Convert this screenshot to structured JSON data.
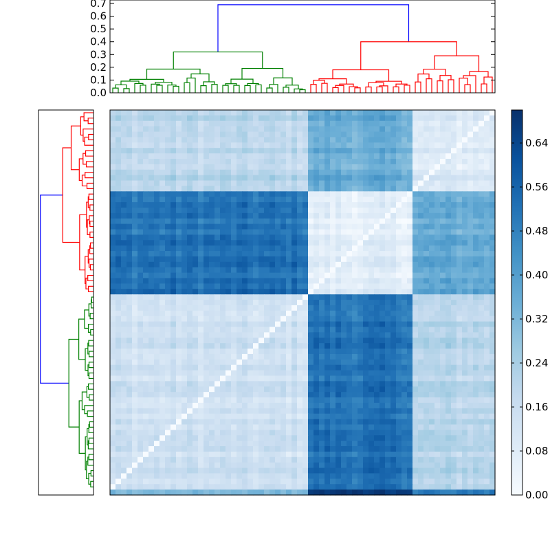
{
  "chart_data": {
    "type": "heatmap",
    "title": "",
    "xlabel": "",
    "ylabel": "",
    "n_leaves": 70,
    "cluster_order": [
      "green",
      "red"
    ],
    "cluster_sizes": {
      "green": 36,
      "red": 34
    },
    "red_subclusters": [
      {
        "name": "r1",
        "size": 19
      },
      {
        "name": "r2",
        "size": 15
      }
    ],
    "block_means": {
      "green-green": 0.14,
      "red1-red1": 0.07,
      "red2-red2": 0.1,
      "green-red1": 0.52,
      "green-red2": 0.2,
      "red1-red2": 0.36
    },
    "extra_bottom_row": {
      "label": "",
      "values_mean": {
        "green": 0.32,
        "red1": 0.68,
        "red2": 0.5
      }
    },
    "colormap": {
      "name": "Blues",
      "min": 0.0,
      "max": 0.7,
      "low_color": "#f7fbff",
      "high_color": "#08306b"
    },
    "colorbar_ticks": [
      "0.00",
      "0.08",
      "0.16",
      "0.24",
      "0.32",
      "0.40",
      "0.48",
      "0.56",
      "0.64"
    ],
    "colorbar_tick_values": [
      0.0,
      0.08,
      0.16,
      0.24,
      0.32,
      0.4,
      0.48,
      0.56,
      0.64
    ],
    "top_dendrogram": {
      "ylim": [
        0,
        0.7
      ],
      "yticks": [
        "0.0",
        "0.1",
        "0.2",
        "0.3",
        "0.4",
        "0.5",
        "0.6",
        "0.7"
      ],
      "ytick_values": [
        0.0,
        0.1,
        0.2,
        0.3,
        0.4,
        0.5,
        0.6,
        0.7
      ],
      "root_height": 0.69,
      "green_root_height": 0.32,
      "red_root_height": 0.4,
      "red_sub_heights": [
        0.18,
        0.29
      ],
      "link_colors": {
        "root": "#0000ff",
        "green": "#008000",
        "red": "#ff0000"
      }
    },
    "left_dendrogram": {
      "orientation": "left",
      "cluster_order_top_to_bottom": [
        "red",
        "green"
      ],
      "root_height": 0.69,
      "link_colors": {
        "root": "#0000ff",
        "green": "#008000",
        "red": "#ff0000"
      }
    }
  }
}
